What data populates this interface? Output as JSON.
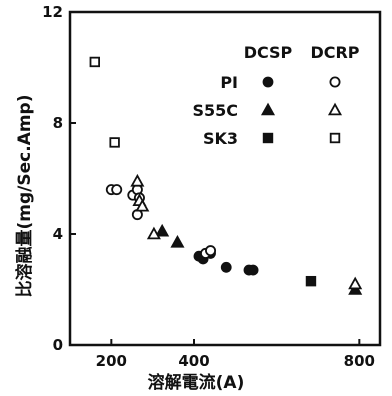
{
  "chart_data": {
    "type": "scatter",
    "title": "",
    "xlabel": "溶解電流(A)",
    "ylabel": "比溶融量(mg/Sec.Amp)",
    "xlim": [
      100,
      850
    ],
    "ylim": [
      0,
      12
    ],
    "x_ticks": [
      "200",
      "400",
      "800"
    ],
    "y_ticks": [
      "0",
      "4",
      "8",
      "12"
    ],
    "grid": false,
    "legend_position": "top-right",
    "legend_columns": [
      "DCSP",
      "DCRP"
    ],
    "legend_rows": [
      "PI",
      "S55C",
      "SK3"
    ],
    "series": [
      {
        "name": "PI",
        "polarity": "DCSP",
        "marker": "filled-circle",
        "points": [
          [
            412,
            3.2
          ],
          [
            422,
            3.1
          ],
          [
            440,
            3.3
          ],
          [
            478,
            2.8
          ],
          [
            533,
            2.7
          ],
          [
            543,
            2.7
          ]
        ]
      },
      {
        "name": "PI",
        "polarity": "DCRP",
        "marker": "open-circle",
        "points": [
          [
            200,
            5.6
          ],
          [
            213,
            5.6
          ],
          [
            252,
            5.4
          ],
          [
            263,
            5.6
          ],
          [
            268,
            5.3
          ],
          [
            263,
            4.7
          ],
          [
            428,
            3.3
          ],
          [
            440,
            3.4
          ]
        ]
      },
      {
        "name": "S55C",
        "polarity": "DCSP",
        "marker": "filled-triangle",
        "points": [
          [
            323,
            4.1
          ],
          [
            360,
            3.7
          ],
          [
            790,
            2.0
          ]
        ]
      },
      {
        "name": "S55C",
        "polarity": "DCRP",
        "marker": "open-triangle",
        "points": [
          [
            263,
            5.9
          ],
          [
            268,
            5.2
          ],
          [
            275,
            5.0
          ],
          [
            303,
            4.0
          ],
          [
            790,
            2.2
          ]
        ]
      },
      {
        "name": "SK3",
        "polarity": "DCSP",
        "marker": "filled-square",
        "points": [
          [
            683,
            2.3
          ]
        ]
      },
      {
        "name": "SK3",
        "polarity": "DCRP",
        "marker": "open-square",
        "points": [
          [
            160,
            10.2
          ],
          [
            208,
            7.3
          ]
        ]
      }
    ]
  }
}
